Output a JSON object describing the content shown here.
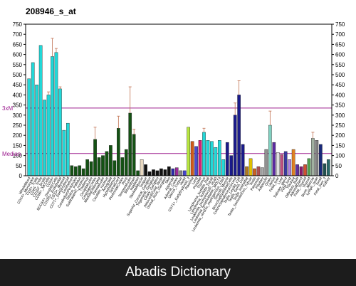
{
  "footer": {
    "text": "Abadis Dictionary"
  },
  "chart_data": {
    "type": "bar",
    "title": "208946_s_at",
    "ylim": [
      0,
      750
    ],
    "yticks": [
      0,
      50,
      100,
      150,
      200,
      250,
      300,
      350,
      400,
      450,
      500,
      550,
      600,
      650,
      700,
      750
    ],
    "grid": false,
    "reference_lines": [
      {
        "label": "3xM",
        "value": 335,
        "color": "#9b1a8e"
      },
      {
        "label": "Median",
        "value": 110,
        "color": "#9b1a8e"
      }
    ],
    "categories": [
      "WholeBlood",
      "CD14+_Monocytes",
      "CD4+_Tcells",
      "CD8+_Tcells",
      "CD19+_Bcells",
      "CD56+_NKCells",
      "CD34+",
      "BDCA4+_DendriticCells",
      "CD105+_Endothelial",
      "CD33+_Myeloid",
      "CD71+_EarlyErythroid",
      "Cerebellum",
      "CerebellumPeduncles",
      "Globus_Pallidus",
      "Subthalamic_nucleus",
      "Thalamus",
      "OccipitalLobe",
      "CingulateCortex",
      "MedullaOblongata",
      "ParietalLobe",
      "Caudate_nucleus",
      "Amygdala",
      "Hypothalamus",
      "SpinalCord",
      "PrefrontalCortex",
      "Pons",
      "TemporalLobe",
      "WholeBrain",
      "fetalbrain",
      "SkeletalMuscle",
      "Tongue",
      "Superior_Cervical_Ganglion",
      "Trigeminal_Ganglion",
      "Ciliary_Ganglion",
      "Atrioventricular_Node",
      "Dorsal_Root_Ganglion",
      "Skin",
      "Appendix",
      "Adrenal_Cortex",
      "Uterus_Corpus",
      "Heart",
      "CD71+_EarlyErythroid_2",
      "Placenta",
      "Lung",
      "Prostate",
      "Thymus",
      "Lymphoma_burkitts_Raji",
      "Lymphoma_burkitts_Daudi",
      "Leukemia_promyelocytic_HL60",
      "Leukemia_lymphoblastic_MOLT4",
      "Leukemia_chronic_myelogenous_K562",
      "Smooth_Muscle",
      "BronchialEpithelialCells",
      "ColorectalAdenocarcinoma",
      "Testis_Leydig_Cell",
      "Testis_Germ_Cell",
      "Testis_Interstitial",
      "Testis_Seminiferous_Tubule",
      "Testis",
      "Pancreas",
      "Pituitary",
      "Adipocyte",
      "Ovary",
      "Uterus",
      "Fetal_liver",
      "Liver",
      "Salivary_gland",
      "Fetal_lung",
      "Trachea",
      "Olfactory_Bulb",
      "AdrenalGland",
      "Fetal_Thyroid",
      "Thyroid",
      "Bone_Marrow",
      "Lymph_node",
      "Tonsil",
      "Fetal_liver_2",
      "Kidney"
    ],
    "values": [
      480,
      560,
      450,
      645,
      375,
      400,
      590,
      610,
      430,
      225,
      260,
      50,
      45,
      50,
      35,
      80,
      70,
      180,
      90,
      100,
      120,
      150,
      75,
      235,
      90,
      130,
      310,
      205,
      25,
      80,
      55,
      20,
      30,
      25,
      35,
      30,
      45,
      35,
      40,
      25,
      25,
      240,
      170,
      145,
      175,
      215,
      175,
      170,
      140,
      175,
      80,
      165,
      100,
      300,
      400,
      155,
      45,
      85,
      35,
      45,
      40,
      130,
      250,
      165,
      115,
      105,
      120,
      80,
      130,
      55,
      45,
      55,
      85,
      185,
      175,
      155,
      60,
      80
    ],
    "errors": [
      0,
      0,
      0,
      0,
      0,
      15,
      90,
      20,
      10,
      0,
      0,
      0,
      0,
      0,
      0,
      0,
      0,
      60,
      0,
      0,
      0,
      0,
      0,
      60,
      0,
      0,
      130,
      25,
      0,
      0,
      0,
      0,
      0,
      0,
      0,
      0,
      0,
      0,
      0,
      0,
      0,
      0,
      0,
      0,
      0,
      20,
      0,
      0,
      0,
      0,
      0,
      0,
      0,
      60,
      70,
      0,
      0,
      0,
      0,
      0,
      0,
      0,
      70,
      0,
      0,
      0,
      0,
      0,
      0,
      0,
      0,
      0,
      0,
      30,
      0,
      0,
      0,
      0
    ],
    "colors": [
      "#22d8d8",
      "#22d8d8",
      "#22d8d8",
      "#22d8d8",
      "#22d8d8",
      "#22d8d8",
      "#22d8d8",
      "#22d8d8",
      "#22d8d8",
      "#22d8d8",
      "#22d8d8",
      "#145214",
      "#145214",
      "#145214",
      "#145214",
      "#145214",
      "#145214",
      "#145214",
      "#145214",
      "#145214",
      "#145214",
      "#145214",
      "#145214",
      "#145214",
      "#145214",
      "#145214",
      "#145214",
      "#145214",
      "#145214",
      "#e8d8c0",
      "#111111",
      "#111111",
      "#111111",
      "#111111",
      "#111111",
      "#111111",
      "#111111",
      "#2a2aa8",
      "#9a2a9a",
      "#888888",
      "#4444cc",
      "#b8e640",
      "#d05a1a",
      "#4a4ad0",
      "#d81e78",
      "#22d8d8",
      "#22d8d8",
      "#22d8d8",
      "#22d8d8",
      "#22d8d8",
      "#22d8d8",
      "#1a1a8a",
      "#1a1a8a",
      "#1a1a8a",
      "#1a1a8a",
      "#1a1a8a",
      "#b07a20",
      "#e0c000",
      "#d06020",
      "#b05050",
      "#aaaaaa",
      "#909090",
      "#80d0c0",
      "#5a2aa0",
      "#e0e0e0",
      "#c05080",
      "#3a3aa0",
      "#b080e0",
      "#e08020",
      "#6030a0",
      "#8a1a6a",
      "#d05030",
      "#50a050",
      "#a0b0a0",
      "#808080",
      "#1a2a7a",
      "#205050",
      "#2a6a6a"
    ]
  }
}
